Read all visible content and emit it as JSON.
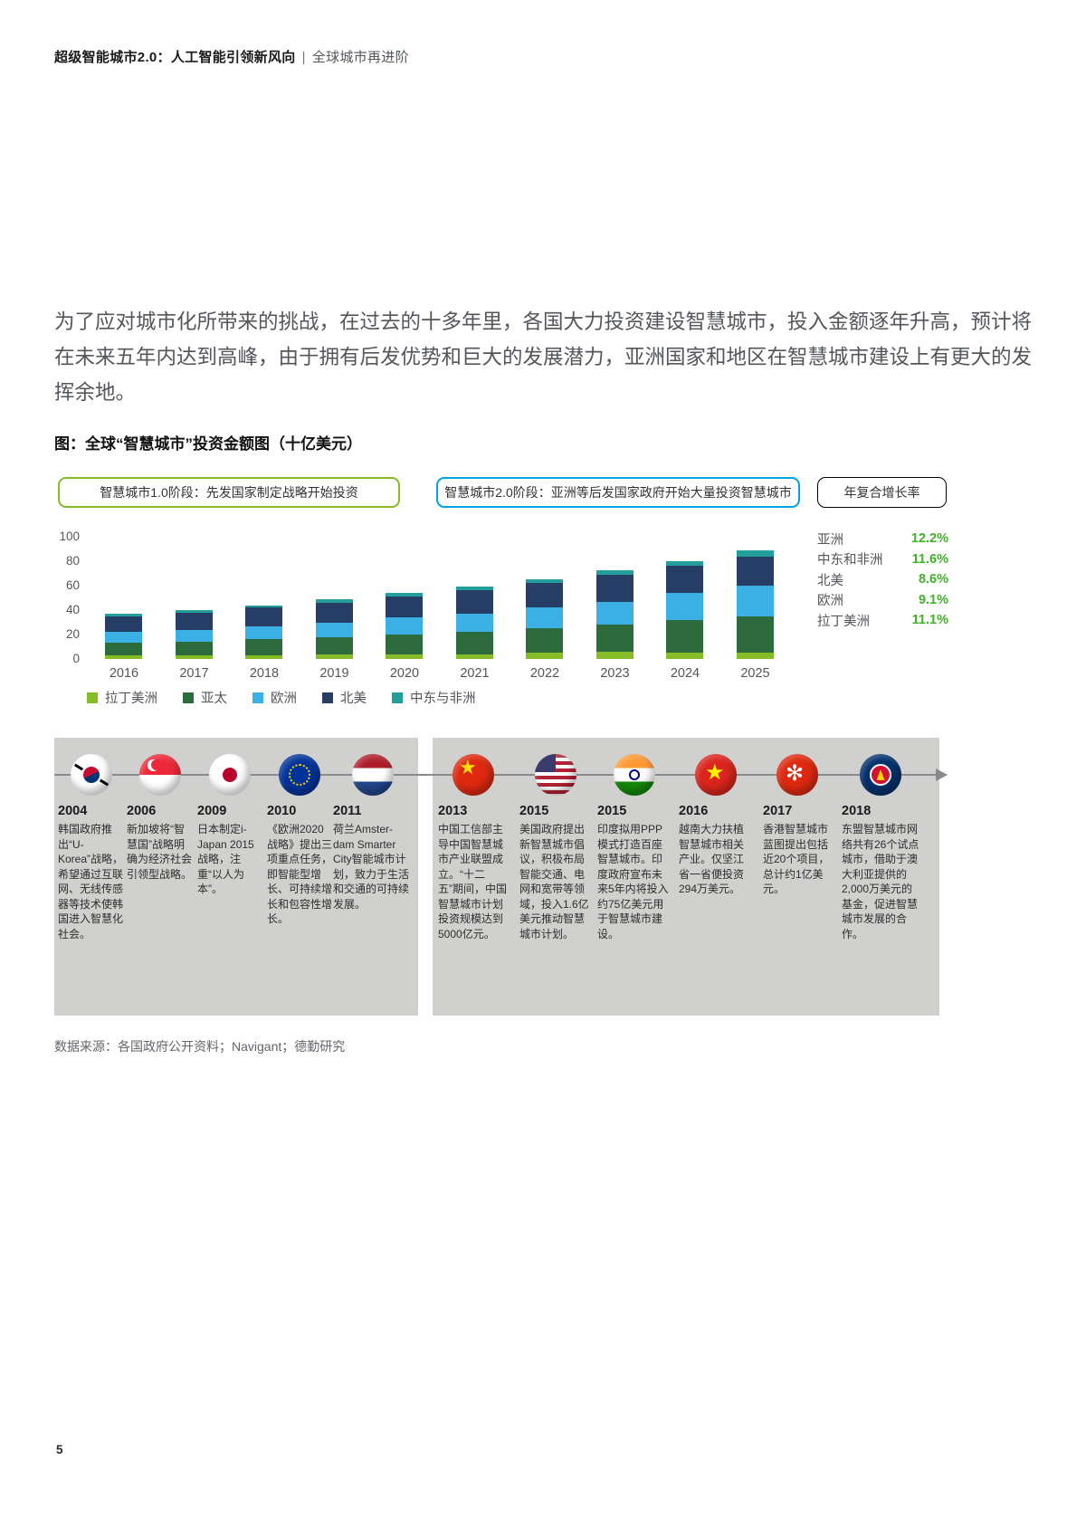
{
  "page": {
    "header": {
      "bold": "超级智能城市2.0：人工智能引领新风向",
      "separator": "|",
      "light": "全球城市再进阶"
    },
    "page_number": "5"
  },
  "intro_paragraph": "为了应对城市化所带来的挑战，在过去的十多年里，各国大力投资建设智慧城市，投入金额逐年升高，预计将在未来五年内达到高峰，由于拥有后发优势和巨大的发展潜力，亚洲国家和地区在智慧城市建设上有更大的发挥余地。",
  "chart": {
    "title": "图：全球“智慧城市”投资金额图（十亿美元）",
    "phase1_label": "智慧城市1.0阶段：先发国家制定战略开始投资",
    "phase2_label": "智慧城市2.0阶段：亚洲等后发国家政府开始大量投资智慧城市",
    "cagr_title": "年复合增长率",
    "cagr": [
      {
        "label": "亚洲",
        "value": "12.2%"
      },
      {
        "label": "中东和非洲",
        "value": "11.6%"
      },
      {
        "label": "北美",
        "value": "8.6%"
      },
      {
        "label": "欧洲",
        "value": "9.1%"
      },
      {
        "label": "拉丁美洲",
        "value": "11.1%"
      }
    ]
  },
  "chart_data": {
    "type": "bar",
    "stacked": true,
    "title": "全球“智慧城市”投资金额图（十亿美元）",
    "categories": [
      "2016",
      "2017",
      "2018",
      "2019",
      "2020",
      "2021",
      "2022",
      "2023",
      "2024",
      "2025"
    ],
    "series": [
      {
        "name": "拉丁美洲",
        "color": "#86BC25",
        "values": [
          3,
          3,
          3,
          4,
          4,
          4,
          5,
          6,
          5,
          5
        ]
      },
      {
        "name": "亚太",
        "color": "#2E6B3C",
        "values": [
          10,
          11,
          13,
          14,
          16,
          18,
          20,
          22,
          27,
          30
        ]
      },
      {
        "name": "欧洲",
        "color": "#3BB0E5",
        "values": [
          9,
          10,
          11,
          12,
          14,
          15,
          17,
          19,
          22,
          25
        ]
      },
      {
        "name": "北美",
        "color": "#263D66",
        "values": [
          13,
          14,
          15,
          16,
          17,
          19,
          20,
          22,
          22,
          24
        ]
      },
      {
        "name": "中东与非洲",
        "color": "#239E9B",
        "values": [
          2,
          2,
          2,
          3,
          3,
          3,
          3,
          4,
          4,
          5
        ]
      }
    ],
    "ylim": [
      0,
      100
    ],
    "yticks": [
      0,
      20,
      40,
      60,
      80,
      100
    ],
    "grid": false,
    "legend_position": "bottom"
  },
  "timeline": {
    "items": [
      {
        "year": "2004",
        "flag": "korea",
        "text": "韩国政府推出“U-Korea”战略，希望通过互联网、无线传感器等技术使韩国进入智慧化社会。"
      },
      {
        "year": "2006",
        "flag": "singapore",
        "text": "新加坡将“智慧国”战略明确为经济社会引领型战略。"
      },
      {
        "year": "2009",
        "flag": "japan",
        "text": "日本制定i-Japan 2015战略，注重“以人为本”。"
      },
      {
        "year": "2010",
        "flag": "eu",
        "text": "《欧洲2020战略》提出三项重点任务，即智能型增长、可持续增长和包容性增长。"
      },
      {
        "year": "2011",
        "flag": "netherlands",
        "text": "荷兰Amster-dam Smarter City智能城市计划，致力于生活和交通的可持续发展。"
      },
      {
        "year": "2013",
        "flag": "china",
        "text": "中国工信部主导中国智慧城市产业联盟成立。“十二五”期间，中国智慧城市计划投资规模达到5000亿元。"
      },
      {
        "year": "2015",
        "flag": "usa",
        "text": "美国政府提出新智慧城市倡议，积极布局智能交通、电网和宽带等领域，投入1.6亿美元推动智慧城市计划。"
      },
      {
        "year": "2015",
        "flag": "india",
        "text": "印度拟用PPP模式打造百座智慧城市。印度政府宣布未来5年内将投入约75亿美元用于智慧城市建设。"
      },
      {
        "year": "2016",
        "flag": "vietnam",
        "text": "越南大力扶植智慧城市相关产业。仅坚江省一省便投资294万美元。"
      },
      {
        "year": "2017",
        "flag": "hongkong",
        "text": "香港智慧城市蓝图提出包括近20个项目，总计约1亿美元。"
      },
      {
        "year": "2018",
        "flag": "asean",
        "text": "东盟智慧城市网络共有26个试点城市，借助于澳大利亚提供的2,000万美元的基金，促进智慧城市发展的合作。"
      }
    ]
  },
  "source_note": "数据来源：各国政府公开资料；Navigant；德勤研究"
}
